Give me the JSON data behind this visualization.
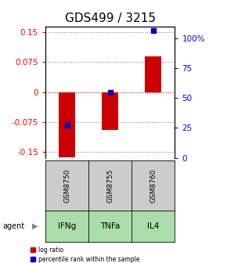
{
  "title": "GDS499 / 3215",
  "samples": [
    "GSM8750",
    "GSM8755",
    "GSM8760"
  ],
  "agents": [
    "IFNg",
    "TNFa",
    "IL4"
  ],
  "log_ratios": [
    -0.163,
    -0.095,
    0.09
  ],
  "percentile_ranks": [
    25,
    50,
    97
  ],
  "ylim_left": [
    -0.165,
    0.165
  ],
  "yticks_left": [
    -0.15,
    -0.075,
    0,
    0.075,
    0.15
  ],
  "ytick_labels_left": [
    "-0.15",
    "-0.075",
    "0",
    "0.075",
    "0.15"
  ],
  "ylim_right": [
    0,
    110
  ],
  "yticks_right": [
    0,
    25,
    50,
    75,
    100
  ],
  "ytick_labels_right": [
    "0",
    "25",
    "50",
    "75",
    "100%"
  ],
  "bar_color": "#cc0000",
  "dot_color": "#0000cc",
  "gsm_bg": "#cccccc",
  "agent_bg": "#aaddaa",
  "grid_color": "#888888",
  "zero_line_color": "#cc0000",
  "title_fontsize": 11,
  "tick_fontsize": 7.5,
  "label_fontsize": 8
}
